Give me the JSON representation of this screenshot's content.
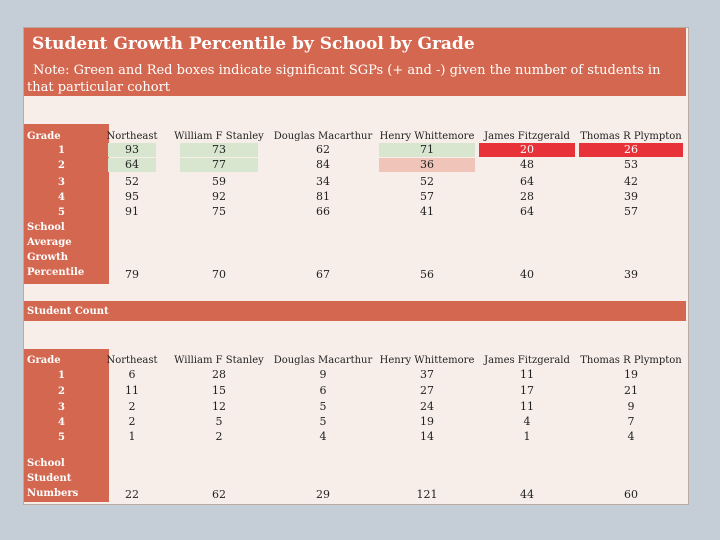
{
  "title": "Student Growth Percentile by School by Grade",
  "note": "Note: Green and Red boxes indicate significant SGPs (+ and -) given the number of students in that particular cohort",
  "colors": {
    "header_bg": "#d4674f",
    "panel_bg": "#f7eee9",
    "green": "#d8e6d0",
    "red": "#e8323a",
    "light_red": "#f0c4b8"
  },
  "schools": [
    "Northeast",
    "William F Stanley",
    "Douglas Macarthur",
    "Henry Whittemore",
    "James Fitzgerald",
    "Thomas R Plympton"
  ],
  "sgp": {
    "grade_label": "Grade",
    "grades": [
      "1",
      "2",
      "3",
      "4",
      "5"
    ],
    "rows": [
      [
        "93",
        "73",
        "62",
        "71",
        "20",
        "26"
      ],
      [
        "64",
        "77",
        "84",
        "36",
        "48",
        "53"
      ],
      [
        "52",
        "59",
        "34",
        "52",
        "64",
        "42"
      ],
      [
        "95",
        "92",
        "81",
        "57",
        "28",
        "39"
      ],
      [
        "91",
        "75",
        "66",
        "41",
        "64",
        "57"
      ]
    ],
    "highlights": [
      [
        "green",
        "green",
        "",
        "green",
        "red",
        "red"
      ],
      [
        "green",
        "green",
        "",
        "lightred",
        "",
        ""
      ],
      [
        "",
        "",
        "",
        "",
        "",
        ""
      ],
      [
        "",
        "",
        "",
        "",
        "",
        ""
      ],
      [
        "",
        "",
        "",
        "",
        "",
        ""
      ]
    ],
    "average_label": "School\nAverage\nGrowth\nPercentile",
    "averages": [
      "79",
      "70",
      "67",
      "56",
      "40",
      "39"
    ]
  },
  "counts": {
    "section_label": "Student Count",
    "grade_label": "Grade",
    "grades": [
      "1",
      "2",
      "3",
      "4",
      "5"
    ],
    "rows": [
      [
        "6",
        "28",
        "9",
        "37",
        "11",
        "19"
      ],
      [
        "11",
        "15",
        "6",
        "27",
        "17",
        "21"
      ],
      [
        "2",
        "12",
        "5",
        "24",
        "11",
        "9"
      ],
      [
        "2",
        "5",
        "5",
        "19",
        "4",
        "7"
      ],
      [
        "1",
        "2",
        "4",
        "14",
        "1",
        "4"
      ]
    ],
    "total_label": "School\nStudent\nNumbers",
    "totals": [
      "22",
      "62",
      "29",
      "121",
      "44",
      "60"
    ]
  }
}
